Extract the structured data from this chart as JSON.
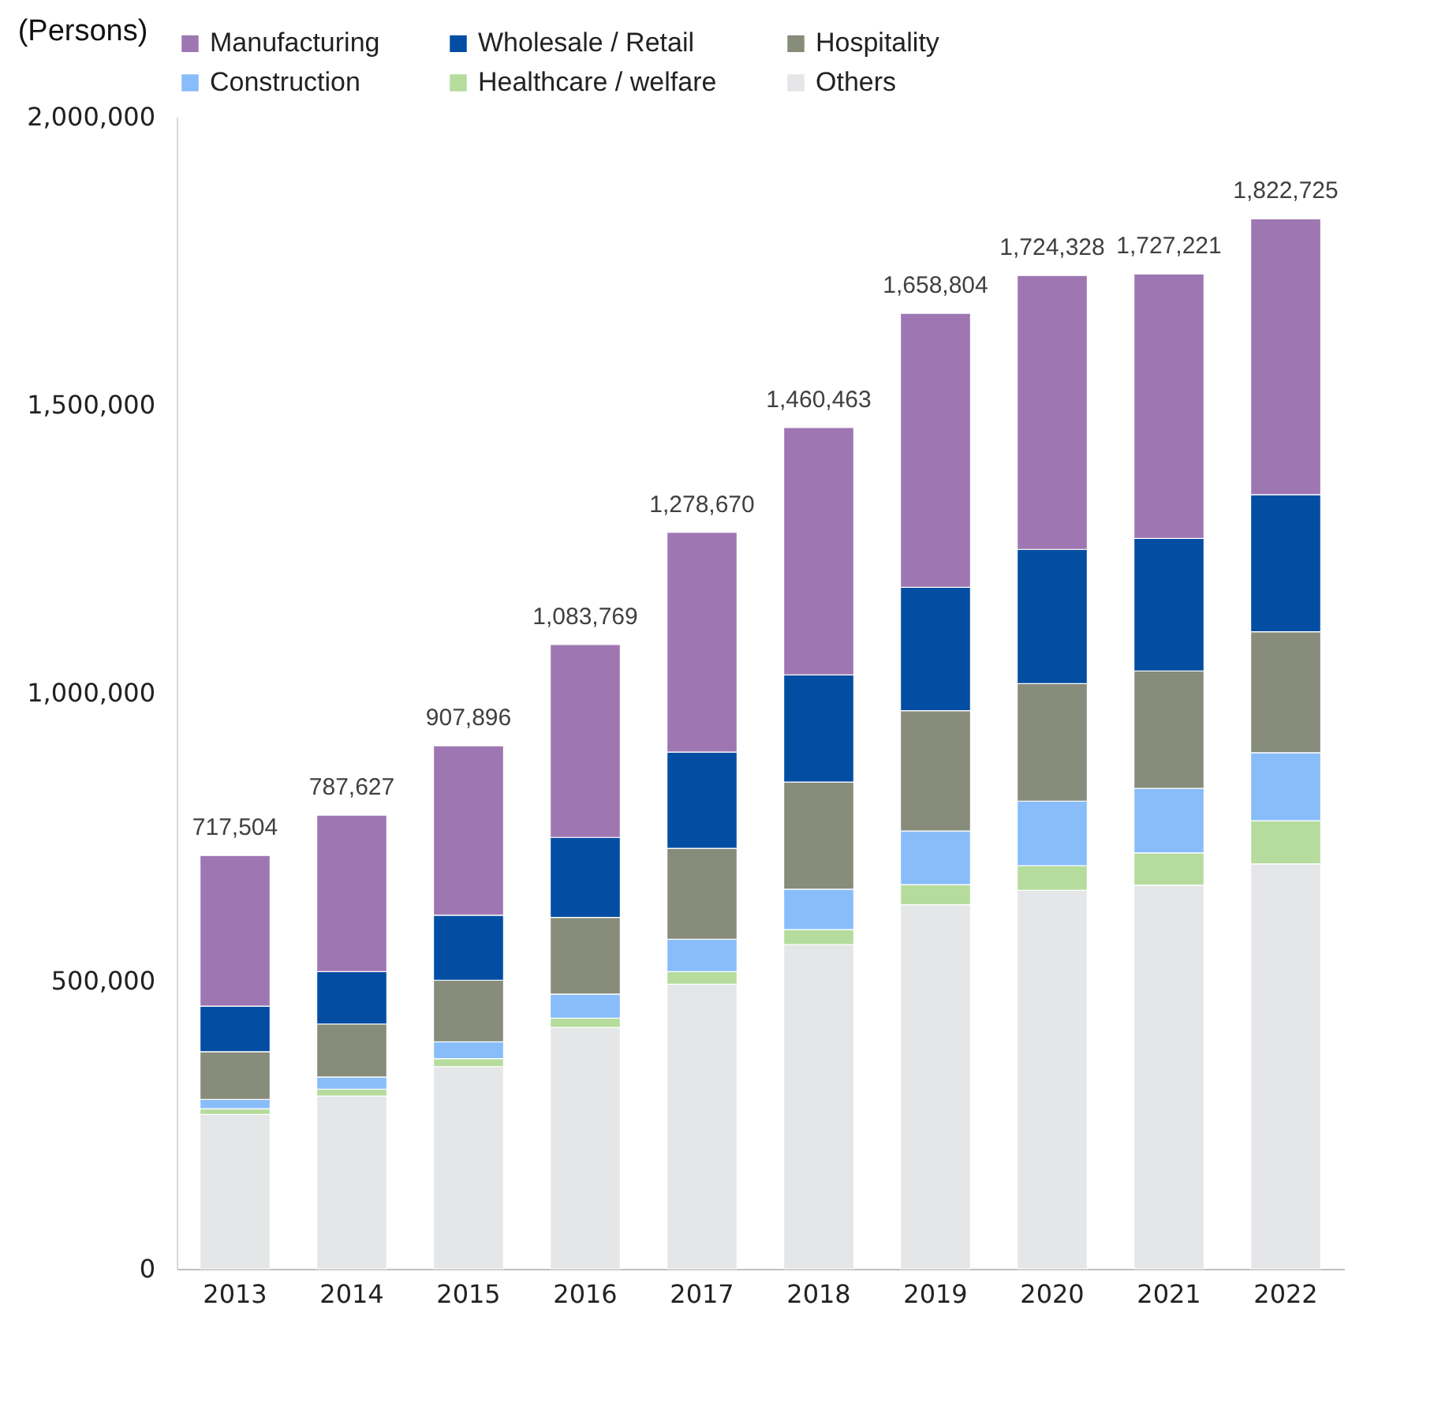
{
  "chart_data": {
    "type": "bar",
    "stacked": true,
    "ylabel": "(Persons)",
    "categories": [
      "2013",
      "2014",
      "2015",
      "2016",
      "2017",
      "2018",
      "2019",
      "2020",
      "2021",
      "2022"
    ],
    "series": [
      {
        "name": "Others",
        "color": "#e5e6e8",
        "values": [
          268000,
          300000,
          351000,
          419000,
          494000,
          563000,
          632000,
          657000,
          666000,
          703000
        ]
      },
      {
        "name": "Healthcare / welfare",
        "color": "#b5dc9d",
        "values": [
          10000,
          12000,
          14000,
          16000,
          22000,
          26000,
          35000,
          43000,
          56000,
          75000
        ]
      },
      {
        "name": "Construction",
        "color": "#88bdfa",
        "values": [
          16000,
          21000,
          29000,
          42000,
          56000,
          70000,
          93000,
          112000,
          112000,
          118000
        ]
      },
      {
        "name": "Hospitality",
        "color": "#878c7b",
        "values": [
          83000,
          92000,
          107000,
          133000,
          158000,
          186000,
          209000,
          204000,
          204000,
          210000
        ]
      },
      {
        "name": "Wholesale / Retail",
        "color": "#034ea2",
        "values": [
          79000,
          91000,
          113000,
          139000,
          167000,
          186000,
          214000,
          233000,
          230000,
          238000
        ]
      },
      {
        "name": "Manufacturing",
        "color": "#9e77b2",
        "values": [
          261504,
          271627,
          293896,
          334769,
          381670,
          429463,
          475804,
          475328,
          459221,
          478725
        ]
      }
    ],
    "totals": [
      "717,504",
      "787,627",
      "907,896",
      "1,083,769",
      "1,278,670",
      "1,460,463",
      "1,658,804",
      "1,724,328",
      "1,727,221",
      "1,822,725"
    ],
    "ylim": [
      0,
      2000000
    ],
    "yticks": [
      0,
      {
        "value": 500000,
        "label": "500,000"
      },
      {
        "value": 1000000,
        "label": "1,000,000"
      },
      {
        "value": 1500000,
        "label": "1,500,000"
      },
      {
        "value": 2000000,
        "label": "2,000,000"
      }
    ],
    "grid": false,
    "legend": "top"
  }
}
